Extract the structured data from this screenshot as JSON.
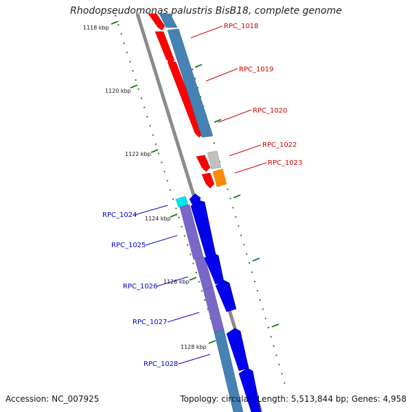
{
  "title": "Rhodopseudomonas palustris BisB18, complete genome",
  "footer": {
    "accession": "Accession: NC_007925",
    "stats": "Topology: circular; Length: 5,513,844 bp; Genes: 4,958"
  },
  "ticks": [
    "1118 kbp",
    "1120 kbp",
    "1122 kbp",
    "1124 kbp",
    "1126 kbp",
    "1128 kbp"
  ],
  "labels": {
    "right": [
      "RPC_1018",
      "RPC_1019",
      "RPC_1020",
      "RPC_1022",
      "RPC_1023"
    ],
    "left": [
      "RPC_1024",
      "RPC_1025",
      "RPC_1026",
      "RPC_1027",
      "RPC_1028"
    ]
  },
  "colors": {
    "forward_cds": "#ff0000",
    "reverse_cds": "#0000ee",
    "cog_steelblue": "#4682b4",
    "cog_purple": "#7a68c8",
    "cog_gray": "#c0c0c0",
    "cog_orange": "#ff8c00",
    "cog_cyan": "#00e5ee",
    "backbone": "#8c8c8c",
    "ticks": "#1f7a1f",
    "label_red": "#cc0000",
    "label_blue": "#0000cc"
  }
}
